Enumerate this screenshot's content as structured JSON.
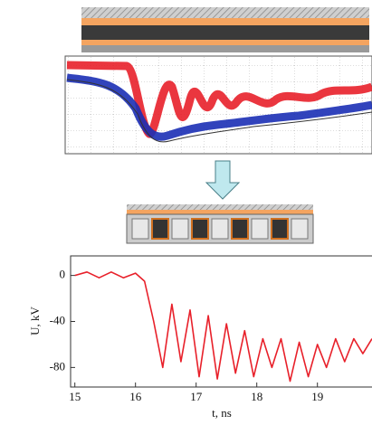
{
  "chart_data": {
    "type": "line",
    "x_label": "t, ns",
    "y_label": "U, kV",
    "x": [
      15,
      15.2,
      15.4,
      15.6,
      15.8,
      16.0,
      16.15,
      16.3,
      16.45,
      16.6,
      16.75,
      16.9,
      17.05,
      17.2,
      17.35,
      17.5,
      17.65,
      17.8,
      17.95,
      18.1,
      18.25,
      18.4,
      18.55,
      18.7,
      18.85,
      19.0,
      19.15,
      19.3,
      19.45,
      19.6,
      19.75,
      19.9
    ],
    "series": [
      {
        "color": "#e8202a",
        "values": [
          0,
          3,
          -2,
          3,
          -2,
          2,
          -5,
          -40,
          -80,
          -25,
          -75,
          -30,
          -88,
          -35,
          -90,
          -42,
          -85,
          -48,
          -88,
          -55,
          -80,
          -55,
          -92,
          -58,
          -88,
          -60,
          -80,
          -55,
          -75,
          -55,
          -68,
          -55
        ]
      }
    ],
    "xlim": [
      14.93,
      19.9
    ],
    "ylim": [
      -97,
      17
    ],
    "xticks": [
      15,
      16,
      17,
      18,
      19
    ],
    "yticks": [
      0,
      -40,
      -80
    ]
  }
}
